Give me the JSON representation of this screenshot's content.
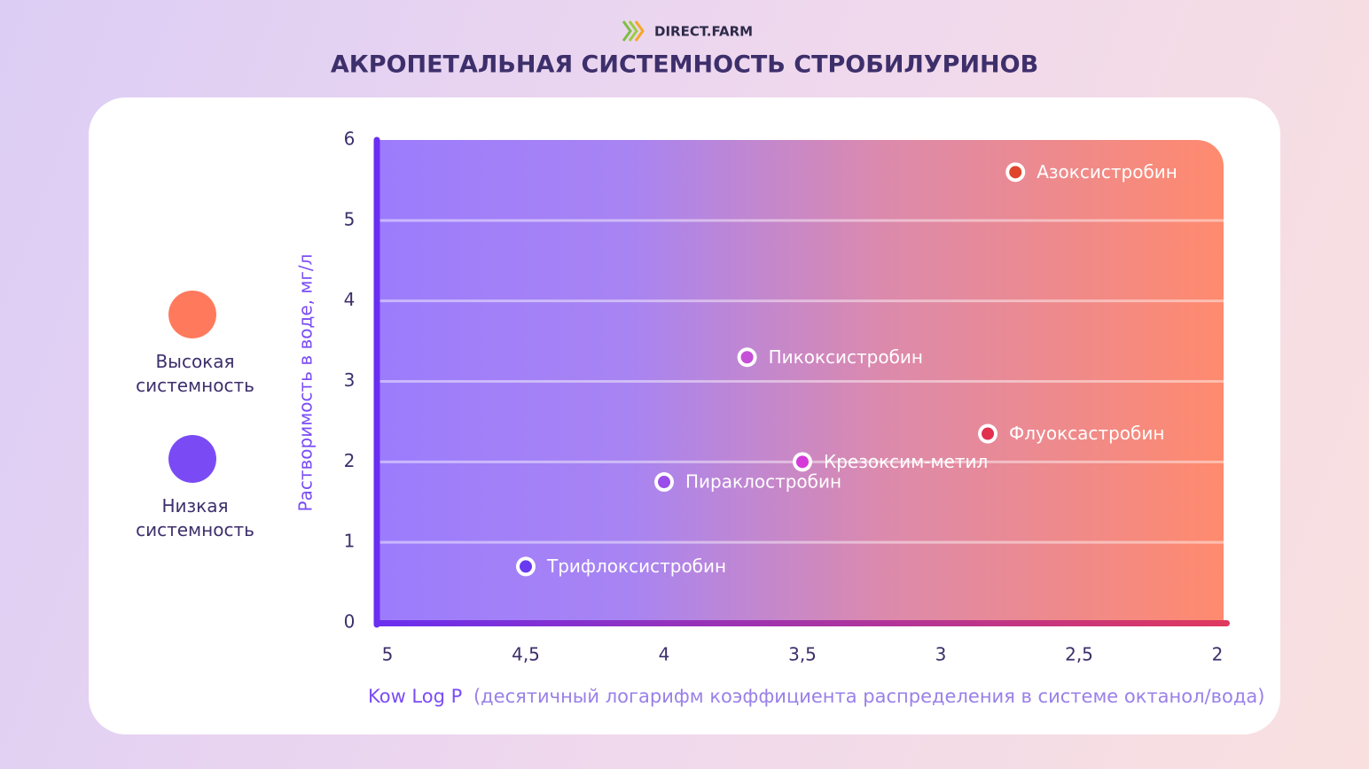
{
  "header": {
    "brand": "DIRECT.FARM"
  },
  "chart_data": {
    "type": "scatter",
    "title": "АКРОПЕТАЛЬНАЯ СИСТЕМНОСТЬ СТРОБИЛУРИНОВ",
    "xlabel": "Kow Log P",
    "xlabel_note": "(десятичный логарифм коэффициента распределения в системе октанол/вода)",
    "ylabel": "Растворимость в воде, мг/л",
    "point_labels": [
      "Азоксистробин",
      "Пикоксистробин",
      "Флуоксастробин",
      "Крезоксим-метил",
      "Пираклостробин",
      "Трифлоксистробин"
    ],
    "x": [
      2.73,
      3.7,
      2.83,
      3.5,
      4.0,
      4.5
    ],
    "values": [
      5.6,
      3.3,
      2.35,
      2.0,
      1.75,
      0.7
    ],
    "point_colors": [
      "#e0452b",
      "#c64fd8",
      "#e2304f",
      "#d53ad8",
      "#9a4de8",
      "#6a3af0"
    ],
    "xlim": [
      5,
      2
    ],
    "ylim": [
      0,
      6
    ],
    "xticks": [
      5,
      {
        "value": 4.5,
        "label": "4,5"
      },
      4,
      {
        "value": 3.5,
        "label": "3,5"
      },
      3,
      {
        "value": 2.5,
        "label": "2,5"
      },
      2
    ],
    "yticks": [
      0,
      1,
      2,
      3,
      4,
      5,
      6
    ],
    "grid": true,
    "legend": [
      {
        "label": "Высокая системность",
        "color": "#ff7a5c"
      },
      {
        "label": "Низкая системность",
        "color": "#7a4cf5"
      }
    ]
  }
}
